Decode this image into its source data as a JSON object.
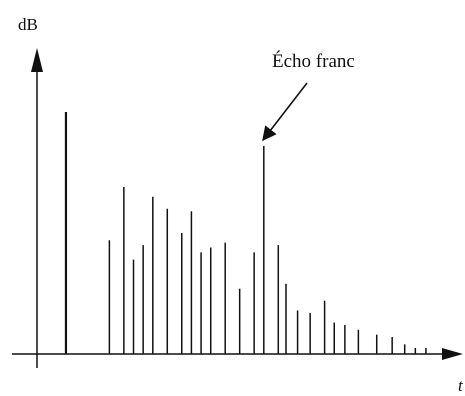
{
  "chart_data": {
    "type": "bar",
    "ylabel": "dB",
    "xlabel": "t",
    "annotation": "Écho franc",
    "annotated_index": 16,
    "ylim": [
      0,
      100
    ],
    "x": [
      0.0,
      4.5,
      6.0,
      7.0,
      8.0,
      9.0,
      10.5,
      12.0,
      13.0,
      14.0,
      15.0,
      16.5,
      18.0,
      19.5,
      20.5,
      22.0,
      22.8,
      24.0,
      25.3,
      26.8,
      27.8,
      28.9,
      30.3,
      32.2,
      33.8,
      35.1,
      36.2,
      37.3
    ],
    "values": [
      100,
      47,
      69,
      39,
      45,
      65,
      60,
      50,
      59,
      42,
      44,
      46,
      27,
      42,
      86,
      45,
      29,
      18,
      17,
      22,
      13,
      12,
      10,
      8,
      7,
      4,
      0,
      0
    ],
    "xlim": [
      -3,
      40
    ]
  }
}
